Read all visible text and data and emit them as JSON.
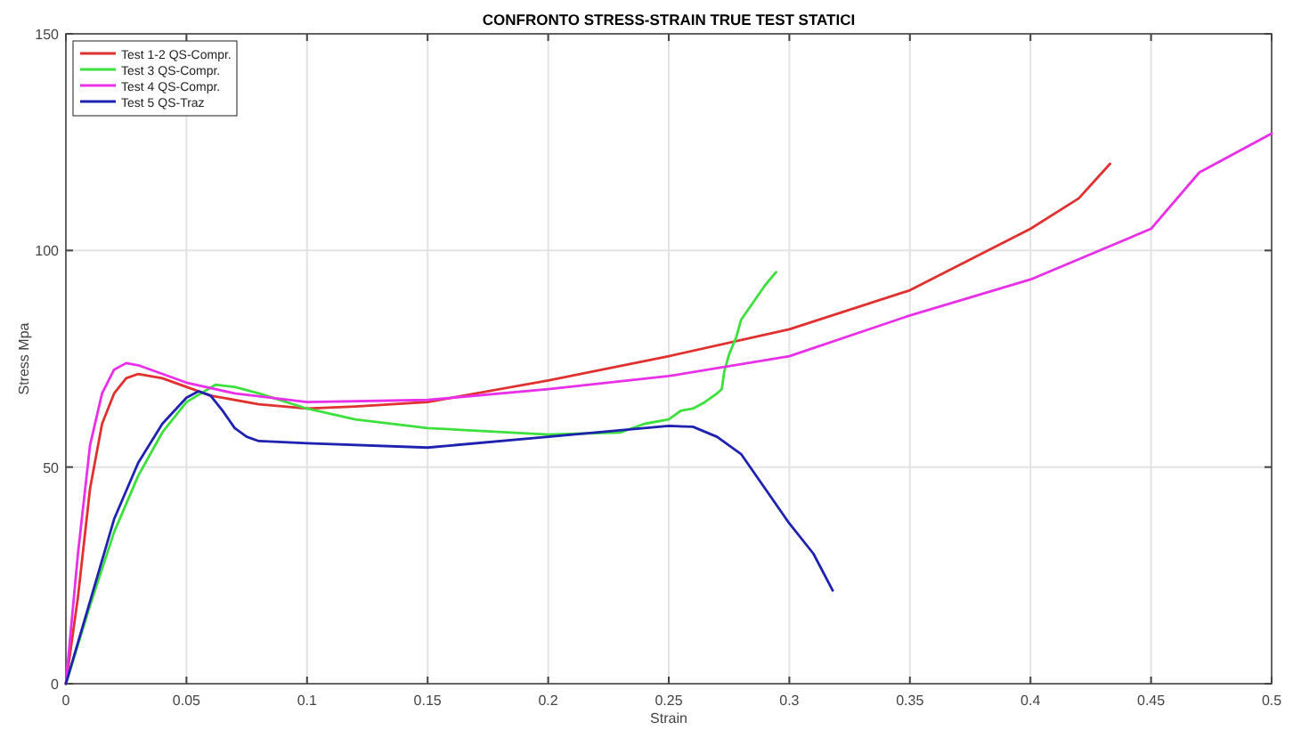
{
  "chart_data": {
    "type": "line",
    "title": "CONFRONTO STRESS-STRAIN TRUE TEST STATICI",
    "xlabel": "Strain",
    "ylabel": "Stress Mpa",
    "xlim": [
      0,
      0.5
    ],
    "ylim": [
      0,
      150
    ],
    "xticks": [
      0,
      0.05,
      0.1,
      0.15,
      0.2,
      0.25,
      0.3,
      0.35,
      0.4,
      0.45,
      0.5
    ],
    "yticks": [
      0,
      50,
      100,
      150
    ],
    "grid": true,
    "legend": "top left",
    "line_style": "solid",
    "marker": "none",
    "series": [
      {
        "name": "Test 1-2 QS-Compr.",
        "color": "#e0302f",
        "x": [
          0,
          0.005,
          0.01,
          0.015,
          0.02,
          0.025,
          0.03,
          0.04,
          0.05,
          0.06,
          0.08,
          0.1,
          0.12,
          0.15,
          0.2,
          0.25,
          0.3,
          0.35,
          0.4,
          0.42,
          0.433
        ],
        "values": [
          0,
          20,
          45,
          60,
          67,
          70.5,
          71.5,
          70.5,
          68.5,
          66.5,
          64.5,
          63.5,
          64,
          65,
          70,
          75.6,
          81.8,
          90.8,
          105,
          112,
          120
        ]
      },
      {
        "name": "Test 3 QS-Compr.",
        "color": "#3de03d",
        "x": [
          0,
          0.01,
          0.02,
          0.03,
          0.04,
          0.05,
          0.062,
          0.07,
          0.08,
          0.1,
          0.12,
          0.15,
          0.2,
          0.23,
          0.24,
          0.25,
          0.255,
          0.26,
          0.265,
          0.27,
          0.272,
          0.273,
          0.275,
          0.278,
          0.28,
          0.285,
          0.29,
          0.2945
        ],
        "values": [
          0,
          18,
          35,
          48,
          58,
          65,
          69,
          68.5,
          67,
          63.5,
          61,
          59,
          57.5,
          58,
          60,
          61,
          63,
          63.5,
          65,
          67,
          68,
          72,
          76,
          80,
          84,
          88,
          92,
          95
        ]
      },
      {
        "name": "Test 4 QS-Compr.",
        "color": "#e830e8",
        "x": [
          0,
          0.005,
          0.01,
          0.015,
          0.02,
          0.025,
          0.03,
          0.04,
          0.05,
          0.07,
          0.1,
          0.15,
          0.2,
          0.25,
          0.3,
          0.35,
          0.4,
          0.45,
          0.47,
          0.5
        ],
        "values": [
          0,
          30,
          55,
          67,
          72.5,
          74,
          73.5,
          71.5,
          69.5,
          67,
          65,
          65.5,
          68,
          71,
          75.6,
          85,
          93.3,
          105,
          118,
          127
        ]
      },
      {
        "name": "Test 5 QS-Traz",
        "color": "#1f22b0",
        "x": [
          0,
          0.01,
          0.02,
          0.03,
          0.04,
          0.05,
          0.055,
          0.06,
          0.065,
          0.07,
          0.075,
          0.08,
          0.1,
          0.15,
          0.2,
          0.25,
          0.26,
          0.27,
          0.28,
          0.29,
          0.3,
          0.31,
          0.318
        ],
        "values": [
          0,
          19,
          38,
          51,
          60,
          66,
          67.5,
          66.5,
          63,
          59,
          57,
          56,
          55.5,
          54.5,
          57,
          59.5,
          59.3,
          57,
          53,
          45,
          37,
          30,
          21.5
        ]
      }
    ]
  }
}
